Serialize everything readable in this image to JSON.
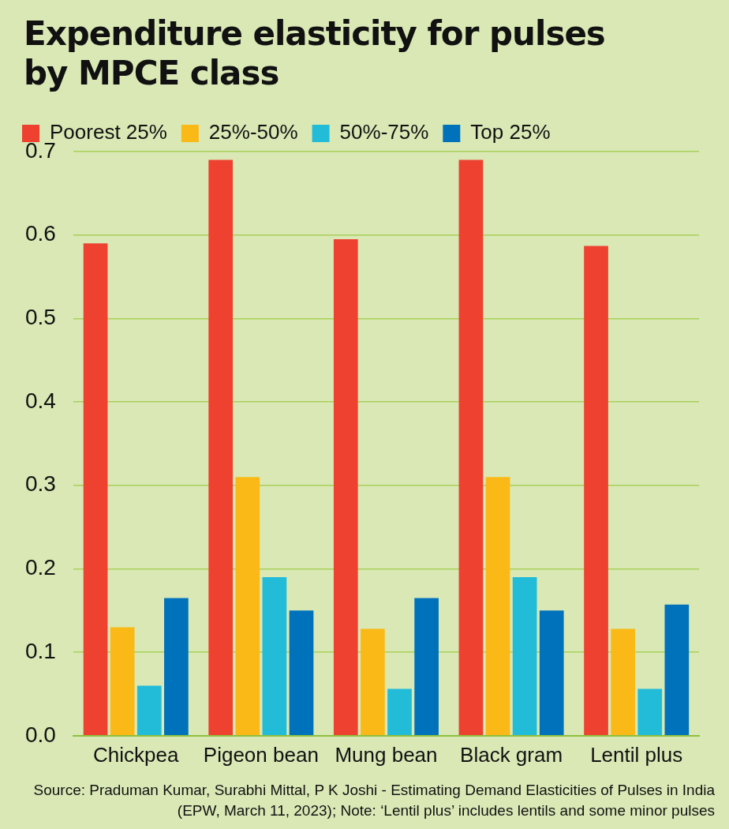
{
  "chart_data": {
    "type": "bar",
    "title": "Expenditure elasticity for pulses by MPCE class",
    "categories": [
      "Chickpea",
      "Pigeon bean",
      "Mung bean",
      "Black gram",
      "Lentil plus"
    ],
    "series": [
      {
        "name": "Poorest 25%",
        "color": "#ee4130",
        "values": [
          0.59,
          0.69,
          0.595,
          0.69,
          0.587
        ]
      },
      {
        "name": "25%-50%",
        "color": "#fbb917",
        "values": [
          0.13,
          0.31,
          0.128,
          0.31,
          0.128
        ]
      },
      {
        "name": "50%-75%",
        "color": "#22bcd9",
        "values": [
          0.06,
          0.19,
          0.056,
          0.19,
          0.056
        ]
      },
      {
        "name": "Top 25%",
        "color": "#0072bb",
        "values": [
          0.165,
          0.15,
          0.165,
          0.15,
          0.157
        ]
      }
    ],
    "ylim": [
      0,
      0.7
    ],
    "yticks": [
      {
        "value": 0,
        "label": "0.0"
      },
      0.1,
      0.2,
      0.3,
      0.4,
      0.5,
      0.6,
      0.7
    ],
    "grid": "y",
    "legend": "top left",
    "annotations": [
      "Source: Praduman Kumar, Surabhi Mittal, P K Joshi - Estimating Demand Elasticities of Pulses in India (EPW, March 11, 2023); Note: ‘Lentil plus’ includes lentils and some minor pulses"
    ]
  }
}
